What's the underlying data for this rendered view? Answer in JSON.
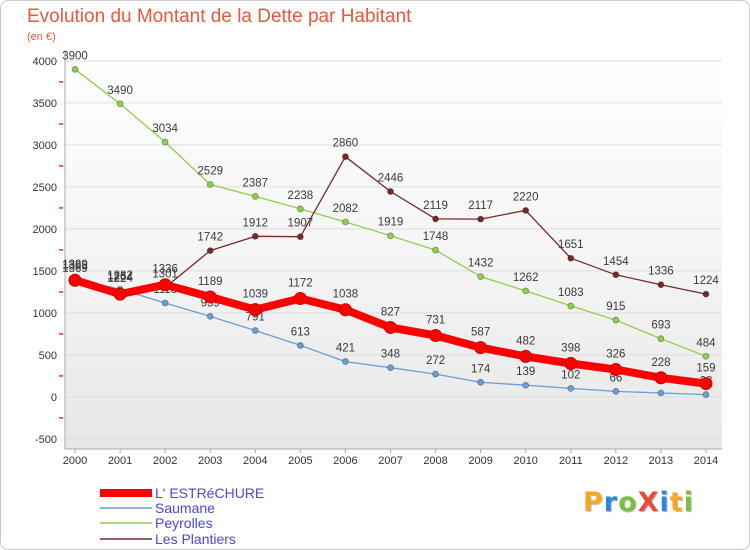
{
  "chart_data": {
    "type": "line",
    "title": "Evolution du Montant de la Dette par Habitant",
    "subtitle": "(en €)",
    "xlabel": "",
    "ylabel": "",
    "categories": [
      "2000",
      "2001",
      "2002",
      "2003",
      "2004",
      "2005",
      "2006",
      "2007",
      "2008",
      "2009",
      "2010",
      "2011",
      "2012",
      "2013",
      "2014"
    ],
    "yticks": [
      -500,
      0,
      500,
      1000,
      1500,
      2000,
      2500,
      3000,
      3500,
      4000
    ],
    "ylim": [
      -620,
      4130
    ],
    "grid": true,
    "legend_position": "bottom-left",
    "series": [
      {
        "name": "L' ESTRéCHURE",
        "color": "#ff0000",
        "values": [
          1389,
          1224,
          1336,
          1189,
          1039,
          1172,
          1038,
          827,
          731,
          587,
          482,
          398,
          326,
          228,
          159
        ]
      },
      {
        "name": "Saumane",
        "color": "#6a9fd4",
        "values": [
          1398,
          1282,
          1118,
          959,
          791,
          613,
          421,
          348,
          272,
          174,
          139,
          102,
          66,
          47,
          28
        ]
      },
      {
        "name": "Peyrolles",
        "color": "#8fcf4a",
        "values": [
          3900,
          3490,
          3034,
          2529,
          2387,
          2238,
          2082,
          1919,
          1748,
          1432,
          1262,
          1083,
          915,
          693,
          484
        ]
      },
      {
        "name": "Les Plantiers",
        "color": "#7a2828",
        "values": [
          1369,
          1264,
          1301,
          1742,
          1912,
          1907,
          2860,
          2446,
          2119,
          2117,
          2220,
          1651,
          1454,
          1336,
          1224
        ]
      }
    ]
  },
  "colors": {
    "title": "#e8583a",
    "legend_text": "#4848d8",
    "minor_tick": "#e03030"
  },
  "logo": {
    "text": "ProXiti",
    "letter_colors": [
      "#f5a623",
      "#2e86de",
      "#7bc043",
      "#e74c3c",
      "#2e86de",
      "#f5a623",
      "#7bc043"
    ]
  }
}
